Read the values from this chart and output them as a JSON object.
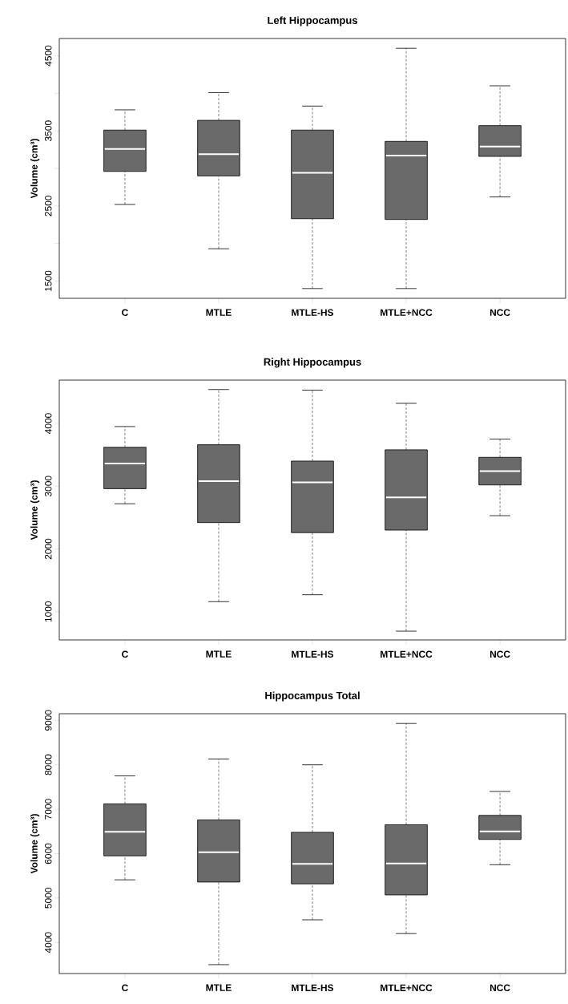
{
  "chart_data": [
    {
      "type": "box",
      "title": "Left Hippocampus",
      "ylabel": "Volume (cm³)",
      "categories": [
        "C",
        "MTLE",
        "MTLE-HS",
        "MTLE+NCC",
        "NCC"
      ],
      "color": "#6a6a6a",
      "ylim": [
        1270,
        4730
      ],
      "yticks": [
        1500,
        {
          "value": 2000,
          "label": null
        },
        2500,
        {
          "value": 3000,
          "label": null
        },
        3500,
        {
          "value": 4000,
          "label": null
        },
        4500
      ],
      "grid": false,
      "boxes": [
        {
          "low": 2520,
          "q1": 2960,
          "median": 3260,
          "q3": 3510,
          "high": 3780
        },
        {
          "low": 1930,
          "q1": 2900,
          "median": 3190,
          "q3": 3640,
          "high": 4010
        },
        {
          "low": 1400,
          "q1": 2330,
          "median": 2940,
          "q3": 3510,
          "high": 3830
        },
        {
          "low": 1400,
          "q1": 2320,
          "median": 3170,
          "q3": 3360,
          "high": 4600
        },
        {
          "low": 2620,
          "q1": 3160,
          "median": 3290,
          "q3": 3570,
          "high": 4100
        }
      ]
    },
    {
      "type": "box",
      "title": "Right Hippocampus",
      "ylabel": "Volume (cm³)",
      "categories": [
        "C",
        "MTLE",
        "MTLE-HS",
        "MTLE+NCC",
        "NCC"
      ],
      "color": "#6a6a6a",
      "ylim": [
        550,
        4690
      ],
      "yticks": [
        1000,
        2000,
        3000,
        4000
      ],
      "grid": false,
      "boxes": [
        {
          "low": 2720,
          "q1": 2960,
          "median": 3360,
          "q3": 3620,
          "high": 3950
        },
        {
          "low": 1160,
          "q1": 2420,
          "median": 3080,
          "q3": 3660,
          "high": 4540
        },
        {
          "low": 1270,
          "q1": 2260,
          "median": 3060,
          "q3": 3400,
          "high": 4530
        },
        {
          "low": 690,
          "q1": 2300,
          "median": 2820,
          "q3": 3580,
          "high": 4320
        },
        {
          "low": 2530,
          "q1": 3020,
          "median": 3240,
          "q3": 3460,
          "high": 3750
        }
      ]
    },
    {
      "type": "box",
      "title": "Hippocampus Total",
      "ylabel": "Volume (cm³)",
      "categories": [
        "C",
        "MTLE",
        "MTLE-HS",
        "MTLE+NCC",
        "NCC"
      ],
      "color": "#6a6a6a",
      "ylim": [
        3300,
        9150
      ],
      "yticks": [
        4000,
        5000,
        6000,
        7000,
        8000,
        9000
      ],
      "grid": false,
      "boxes": [
        {
          "low": 5410,
          "q1": 5950,
          "median": 6490,
          "q3": 7120,
          "high": 7750
        },
        {
          "low": 3500,
          "q1": 5360,
          "median": 6030,
          "q3": 6760,
          "high": 8130
        },
        {
          "low": 4510,
          "q1": 5320,
          "median": 5770,
          "q3": 6480,
          "high": 8000
        },
        {
          "low": 4200,
          "q1": 5070,
          "median": 5780,
          "q3": 6650,
          "high": 8930
        },
        {
          "low": 5750,
          "q1": 6320,
          "median": 6500,
          "q3": 6860,
          "high": 7400
        }
      ]
    }
  ]
}
